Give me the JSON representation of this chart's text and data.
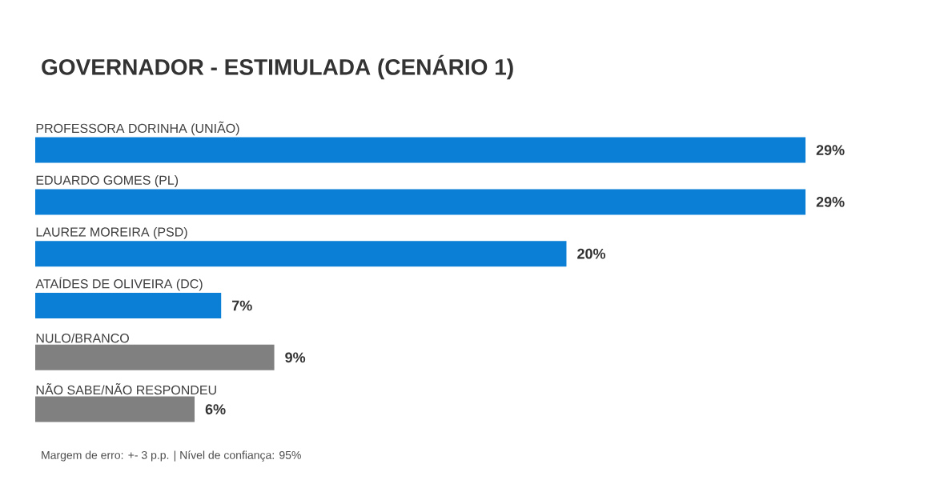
{
  "chart_data": {
    "type": "bar",
    "orientation": "horizontal",
    "title": "GOVERNADOR - ESTIMULADA (CENÁRIO 1)",
    "categories": [
      "PROFESSORA DORINHA (UNIÃO)",
      "EDUARDO GOMES (PL)",
      "LAUREZ MOREIRA (PSD)",
      "ATAÍDES DE OLIVEIRA (DC)",
      "NULO/BRANCO",
      "NÃO SABE/NÃO RESPONDEU"
    ],
    "values": [
      29,
      29,
      20,
      7,
      9,
      6
    ],
    "value_labels": [
      "29%",
      "29%",
      "20%",
      "7%",
      "9%",
      "6%"
    ],
    "colors": [
      "#0a7fd5",
      "#0a7fd5",
      "#0a7fd5",
      "#0a7fd5",
      "#808080",
      "#808080"
    ],
    "annotations": [
      "Margem de erro: +- 3 p.p. | Nível de confiança: 95%"
    ]
  }
}
